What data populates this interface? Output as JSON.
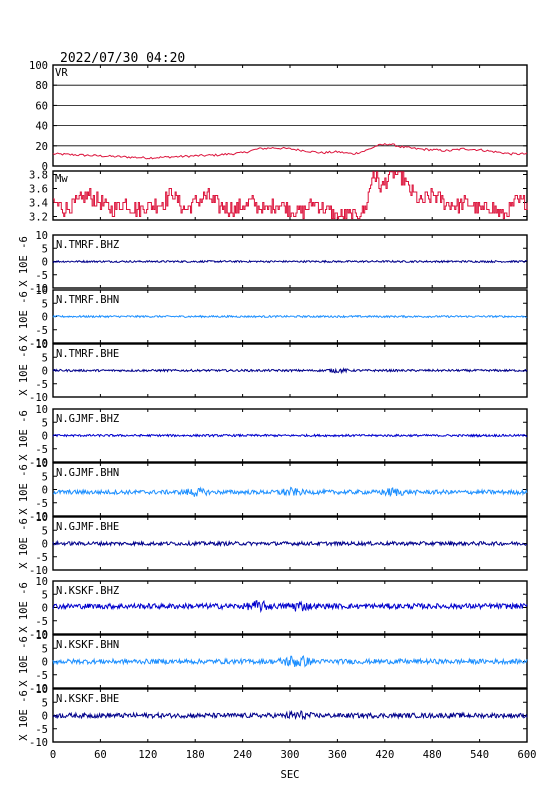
{
  "header": {
    "timestamp": "2022/07/30 04:20"
  },
  "colors": {
    "vr_mw": "#dc143c",
    "dark_blue": "#00008b",
    "blue": "#0000cd",
    "light_blue": "#1e90ff",
    "grid": "#000000"
  },
  "chart_data": {
    "type": "line",
    "x": {
      "label": "SEC",
      "range": [
        0,
        600
      ],
      "ticks": [
        0,
        60,
        120,
        180,
        240,
        300,
        360,
        420,
        480,
        540,
        600
      ]
    },
    "vr": {
      "label": "VR",
      "ylim": [
        0,
        100
      ],
      "yticks": [
        0,
        20,
        40,
        60,
        80,
        100
      ],
      "grid": true,
      "points": [
        [
          0,
          12
        ],
        [
          30,
          11
        ],
        [
          60,
          10
        ],
        [
          90,
          9
        ],
        [
          120,
          8
        ],
        [
          150,
          9
        ],
        [
          180,
          10
        ],
        [
          210,
          11
        ],
        [
          240,
          13
        ],
        [
          260,
          17
        ],
        [
          280,
          18
        ],
        [
          300,
          17
        ],
        [
          320,
          15
        ],
        [
          340,
          13
        ],
        [
          360,
          14
        ],
        [
          380,
          12
        ],
        [
          395,
          15
        ],
        [
          410,
          20
        ],
        [
          425,
          22
        ],
        [
          440,
          19
        ],
        [
          460,
          17
        ],
        [
          480,
          16
        ],
        [
          500,
          15
        ],
        [
          520,
          17
        ],
        [
          540,
          16
        ],
        [
          560,
          14
        ],
        [
          580,
          12
        ],
        [
          600,
          12
        ]
      ]
    },
    "mw": {
      "label": "Mw",
      "ylim": [
        3.15,
        3.85
      ],
      "yticks": [
        3.2,
        3.4,
        3.6,
        3.8
      ],
      "points": [
        [
          0,
          3.4
        ],
        [
          15,
          3.3
        ],
        [
          30,
          3.4
        ],
        [
          45,
          3.5
        ],
        [
          60,
          3.4
        ],
        [
          75,
          3.3
        ],
        [
          90,
          3.4
        ],
        [
          105,
          3.3
        ],
        [
          120,
          3.35
        ],
        [
          140,
          3.4
        ],
        [
          150,
          3.55
        ],
        [
          165,
          3.3
        ],
        [
          180,
          3.4
        ],
        [
          195,
          3.5
        ],
        [
          210,
          3.35
        ],
        [
          230,
          3.3
        ],
        [
          250,
          3.4
        ],
        [
          270,
          3.3
        ],
        [
          285,
          3.4
        ],
        [
          300,
          3.3
        ],
        [
          315,
          3.25
        ],
        [
          330,
          3.4
        ],
        [
          345,
          3.3
        ],
        [
          360,
          3.2
        ],
        [
          380,
          3.2
        ],
        [
          395,
          3.3
        ],
        [
          405,
          3.85
        ],
        [
          415,
          3.6
        ],
        [
          425,
          3.8
        ],
        [
          440,
          3.8
        ],
        [
          450,
          3.6
        ],
        [
          465,
          3.4
        ],
        [
          480,
          3.5
        ],
        [
          495,
          3.4
        ],
        [
          510,
          3.35
        ],
        [
          525,
          3.4
        ],
        [
          540,
          3.3
        ],
        [
          555,
          3.35
        ],
        [
          570,
          3.2
        ],
        [
          585,
          3.4
        ],
        [
          600,
          3.4
        ]
      ]
    },
    "waveforms": [
      {
        "station": "N.TMRF.BHZ",
        "color": "dark_blue",
        "ylabel": "X 10E -6",
        "ylim": [
          -10,
          10
        ],
        "yticks": [
          -10,
          -5,
          0,
          5,
          10
        ],
        "baseline": 0,
        "amplitude": 0.35,
        "burst_at": []
      },
      {
        "station": "N.TMRF.BHN",
        "color": "light_blue",
        "ylabel": "X 10E -6",
        "ylim": [
          -10,
          10
        ],
        "yticks": [
          -10,
          -5,
          0,
          5,
          10
        ],
        "baseline": 0,
        "amplitude": 0.35,
        "burst_at": []
      },
      {
        "station": "N.TMRF.BHE",
        "color": "dark_blue",
        "ylabel": "X 10E -6",
        "ylim": [
          -10,
          10
        ],
        "yticks": [
          -10,
          -5,
          0,
          5,
          10
        ],
        "baseline": 0,
        "amplitude": 0.4,
        "burst_at": [
          360
        ]
      },
      {
        "station": "N.GJMF.BHZ",
        "color": "blue",
        "ylabel": "X 10E -6",
        "ylim": [
          -10,
          10
        ],
        "yticks": [
          -10,
          -5,
          0,
          5,
          10
        ],
        "baseline": 0,
        "amplitude": 0.4,
        "burst_at": []
      },
      {
        "station": "N.GJMF.BHN",
        "color": "light_blue",
        "ylabel": "X 10E -6",
        "ylim": [
          -10,
          10
        ],
        "yticks": [
          -10,
          -5,
          0,
          5,
          10
        ],
        "baseline": -1,
        "amplitude": 0.8,
        "burst_at": [
          180,
          300,
          430
        ]
      },
      {
        "station": "N.GJMF.BHE",
        "color": "dark_blue",
        "ylabel": "X 10E -6",
        "ylim": [
          -10,
          10
        ],
        "yticks": [
          -10,
          -5,
          0,
          5,
          10
        ],
        "baseline": 0,
        "amplitude": 0.7,
        "burst_at": []
      },
      {
        "station": "N.KSKF.BHZ",
        "color": "blue",
        "ylabel": "X 10E -6",
        "ylim": [
          -10,
          10
        ],
        "yticks": [
          -10,
          -5,
          0,
          5,
          10
        ],
        "baseline": 0.5,
        "amplitude": 1.0,
        "burst_at": [
          260,
          310
        ]
      },
      {
        "station": "N.KSKF.BHN",
        "color": "light_blue",
        "ylabel": "X 10E -6",
        "ylim": [
          -10,
          10
        ],
        "yticks": [
          -10,
          -5,
          0,
          5,
          10
        ],
        "baseline": 0,
        "amplitude": 0.9,
        "burst_at": [
          300,
          315
        ]
      },
      {
        "station": "N.KSKF.BHE",
        "color": "dark_blue",
        "ylabel": "X 10E -6",
        "ylim": [
          -10,
          10
        ],
        "yticks": [
          -10,
          -5,
          0,
          5,
          10
        ],
        "baseline": 0,
        "amplitude": 0.9,
        "burst_at": [
          310
        ]
      }
    ]
  }
}
